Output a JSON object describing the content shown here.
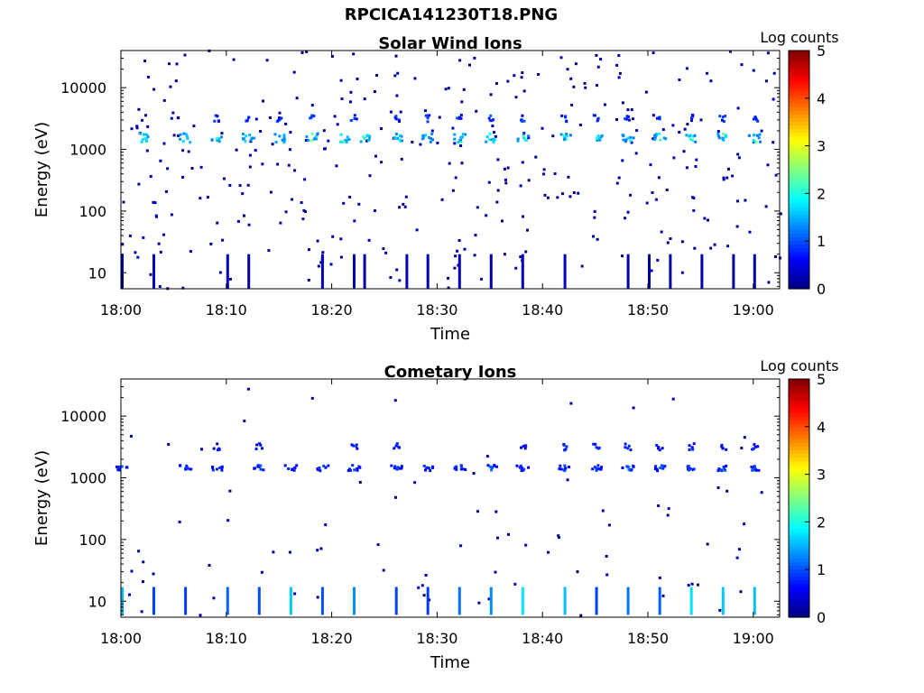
{
  "figure": {
    "title": "RPCICA141230T18.PNG"
  },
  "colorbar": {
    "label": "Log counts",
    "ticks": [
      "0",
      "1",
      "2",
      "3",
      "4",
      "5"
    ],
    "colormap": "jet",
    "range": [
      0,
      5
    ]
  },
  "chart_data": [
    {
      "type": "heatmap",
      "title": "Solar Wind Ions",
      "xlabel": "Time",
      "ylabel": "Energy (eV)",
      "xticks": [
        "18:00",
        "18:10",
        "18:20",
        "18:30",
        "18:40",
        "18:50",
        "19:00"
      ],
      "yticks": [
        "10",
        "100",
        "1000",
        "10000"
      ],
      "yscale": "log",
      "xlim_minutes_after_18": [
        0,
        62.5
      ],
      "ylim": [
        5.5,
        40000
      ],
      "colorbar_label": "Log counts",
      "dominant_band": {
        "energy_eV": [
          1300,
          1800
        ],
        "pulse_times": [
          "18:02",
          "18:06",
          "18:09",
          "18:12",
          "18:15",
          "18:18",
          "18:21",
          "18:23",
          "18:26",
          "18:29",
          "18:32",
          "18:35",
          "18:38",
          "18:42",
          "18:45",
          "18:48",
          "18:51",
          "18:54",
          "18:57",
          "19:00"
        ],
        "peak_log_counts": 2.0
      },
      "secondary_band": {
        "energy_eV": [
          2800,
          3600
        ],
        "pulse_times": [
          "18:09",
          "18:12",
          "18:15",
          "18:18",
          "18:22",
          "18:26",
          "18:29",
          "18:32",
          "18:35",
          "18:38",
          "18:42",
          "18:45",
          "18:48",
          "18:51",
          "18:54",
          "18:57",
          "19:00"
        ],
        "peak_log_counts": 1.0
      },
      "low_energy_spikes": {
        "energy_eV": [
          5.5,
          20
        ],
        "times": [
          "18:00",
          "18:03",
          "18:10",
          "18:12",
          "18:19",
          "18:22",
          "18:23",
          "18:27",
          "18:29",
          "18:32",
          "18:35",
          "18:38",
          "18:42",
          "18:48",
          "18:50",
          "18:52",
          "18:55",
          "18:58",
          "19:00"
        ],
        "peak_log_counts": 0.3
      },
      "background": "sparse single counts, log counts ~0"
    },
    {
      "type": "heatmap",
      "title": "Cometary Ions",
      "xlabel": "Time",
      "ylabel": "Energy (eV)",
      "xticks": [
        "18:00",
        "18:10",
        "18:20",
        "18:30",
        "18:40",
        "18:50",
        "19:00"
      ],
      "yticks": [
        "10",
        "100",
        "1000",
        "10000"
      ],
      "yscale": "log",
      "xlim_minutes_after_18": [
        0,
        62.5
      ],
      "ylim": [
        5.5,
        40000
      ],
      "colorbar_label": "Log counts",
      "dominant_band": {
        "energy_eV": [
          1300,
          1600
        ],
        "pulse_times": [
          "18:00",
          "18:06",
          "18:09",
          "18:13",
          "18:16",
          "18:19",
          "18:22",
          "18:26",
          "18:29",
          "18:32",
          "18:35",
          "18:38",
          "18:42",
          "18:45",
          "18:48",
          "18:51",
          "18:54",
          "18:57",
          "19:00"
        ],
        "peak_log_counts": 1.0
      },
      "secondary_band": {
        "energy_eV": [
          2800,
          3600
        ],
        "pulse_times": [
          "18:09",
          "18:13",
          "18:22",
          "18:26",
          "18:38",
          "18:42",
          "18:45",
          "18:48",
          "18:51",
          "18:54",
          "18:57",
          "19:00"
        ],
        "peak_log_counts": 0.8
      },
      "low_energy_spikes": {
        "energy_eV": [
          6,
          17
        ],
        "times": [
          "18:00",
          "18:03",
          "18:06",
          "18:10",
          "18:13",
          "18:16",
          "18:19",
          "18:22",
          "18:26",
          "18:29",
          "18:32",
          "18:35",
          "18:38",
          "18:42",
          "18:45",
          "18:48",
          "18:51",
          "18:54",
          "18:57",
          "19:00"
        ],
        "peak_log_counts": 1.6
      },
      "background": "sparse single counts, log counts ~0"
    }
  ]
}
